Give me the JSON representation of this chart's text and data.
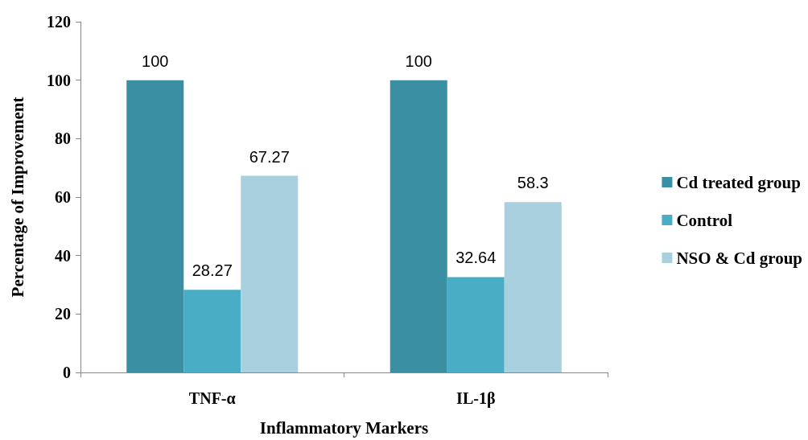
{
  "chart_data": {
    "type": "bar",
    "xlabel": "Inflammatory Markers",
    "ylabel": "Percentage of Improvement",
    "categories": [
      "TNF-α",
      "IL-1β"
    ],
    "series": [
      {
        "name": "Cd treated group",
        "color": "#3a8fa3",
        "values": [
          100,
          100
        ]
      },
      {
        "name": "Control",
        "color": "#4aadc6",
        "values": [
          28.27,
          32.64
        ]
      },
      {
        "name": "NSO & Cd group",
        "color": "#a9d0de",
        "values": [
          67.27,
          58.3
        ]
      }
    ],
    "ylim": [
      0,
      120
    ],
    "yticks": [
      0,
      20,
      40,
      60,
      80,
      100,
      120
    ],
    "grid": false,
    "legend": "right",
    "data_labels": true
  }
}
